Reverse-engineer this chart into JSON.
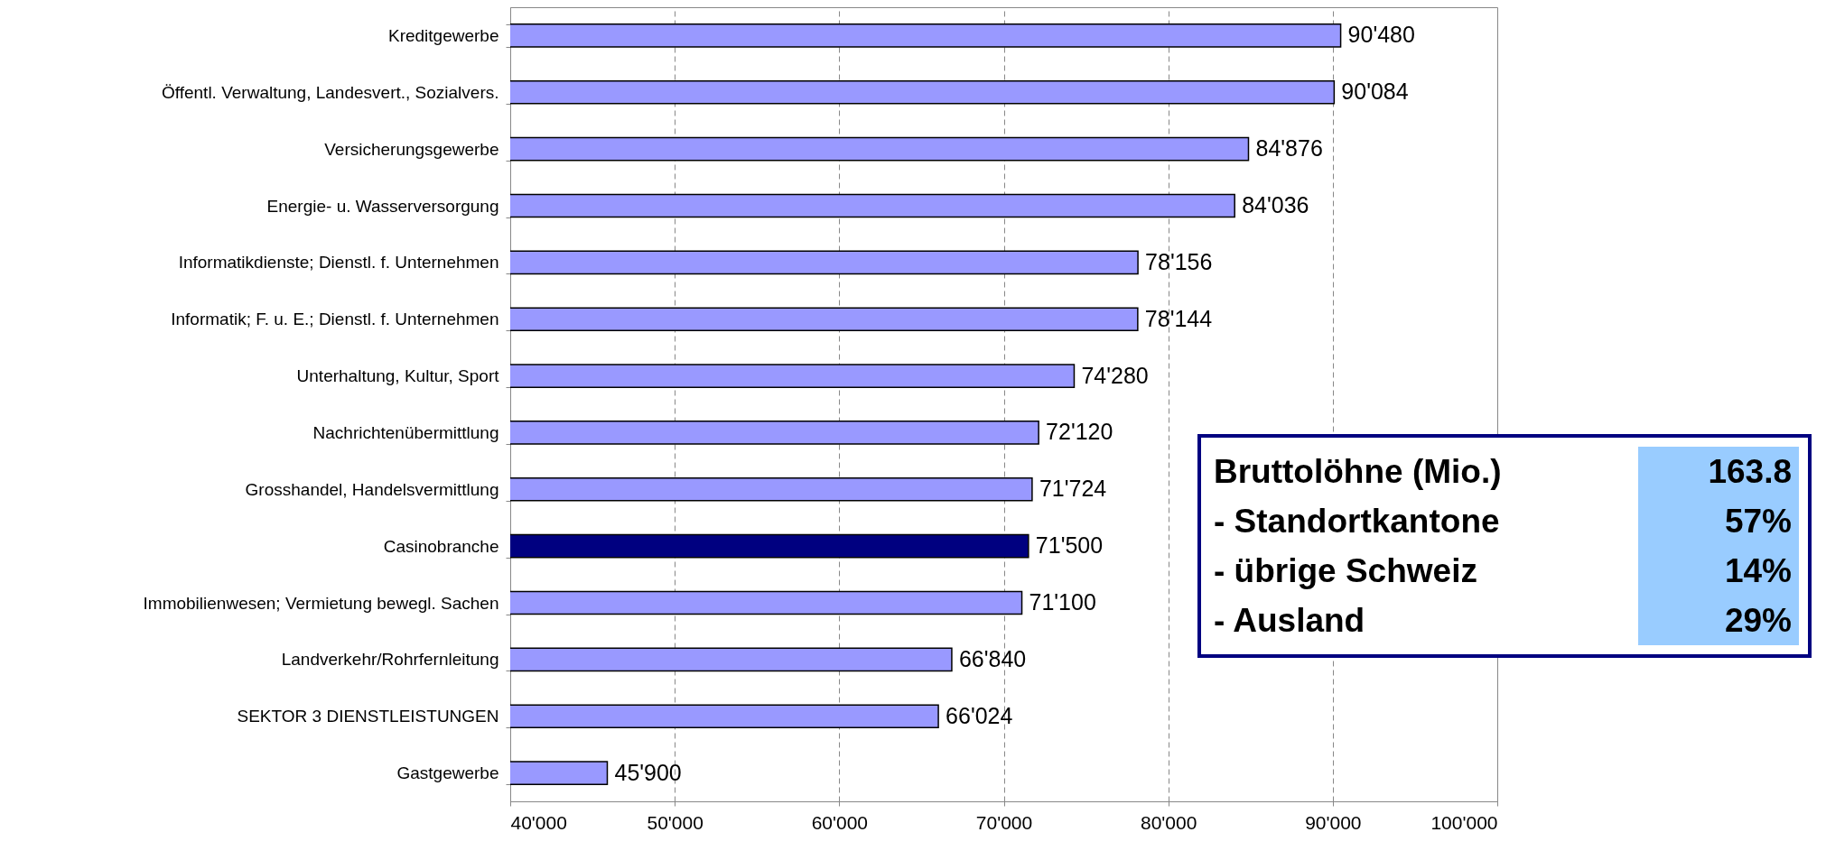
{
  "chart_data": {
    "type": "bar",
    "orientation": "horizontal",
    "categories": [
      "Kreditgewerbe",
      "Öffentl. Verwaltung, Landesvert., Sozialvers.",
      "Versicherungsgewerbe",
      "Energie- u. Wasserversorgung",
      "Informatikdienste; Dienstl. f. Unternehmen",
      "Informatik; F. u. E.; Dienstl. f. Unternehmen",
      "Unterhaltung, Kultur, Sport",
      "Nachrichtenübermittlung",
      "Grosshandel, Handelsvermittlung",
      "Casinobranche",
      "Immobilienwesen; Vermietung bewegl. Sachen",
      "Landverkehr/Rohrfernleitung",
      "SEKTOR 3 DIENSTLEISTUNGEN",
      "Gastgewerbe"
    ],
    "values": [
      90480,
      90084,
      84876,
      84036,
      78156,
      78144,
      74280,
      72120,
      71724,
      71500,
      71100,
      66840,
      66024,
      45900
    ],
    "value_labels": [
      "90'480",
      "90'084",
      "84'876",
      "84'036",
      "78'156",
      "78'144",
      "74'280",
      "72'120",
      "71'724",
      "71'500",
      "71'100",
      "66'840",
      "66'024",
      "45'900"
    ],
    "colors": [
      "#9999ff",
      "#9999ff",
      "#9999ff",
      "#9999ff",
      "#9999ff",
      "#9999ff",
      "#9999ff",
      "#9999ff",
      "#9999ff",
      "#000080",
      "#9999ff",
      "#9999ff",
      "#9999ff",
      "#9999ff"
    ],
    "xlim": [
      40000,
      100000
    ],
    "xticks": [
      {
        "value": 40000,
        "label": "40'000"
      },
      {
        "value": 50000,
        "label": "50'000"
      },
      {
        "value": 60000,
        "label": "60'000"
      },
      {
        "value": 70000,
        "label": "70'000"
      },
      {
        "value": 80000,
        "label": "80'000"
      },
      {
        "value": 90000,
        "label": "90'000"
      },
      {
        "value": 100000,
        "label": "100'000"
      }
    ],
    "grid": "x",
    "annotations": [
      "Bruttolöhne (Mio.)",
      "163.8",
      "- Standortkantone",
      "57%",
      "- übrige Schweiz",
      "14%",
      "- Ausland",
      "29%"
    ]
  }
}
